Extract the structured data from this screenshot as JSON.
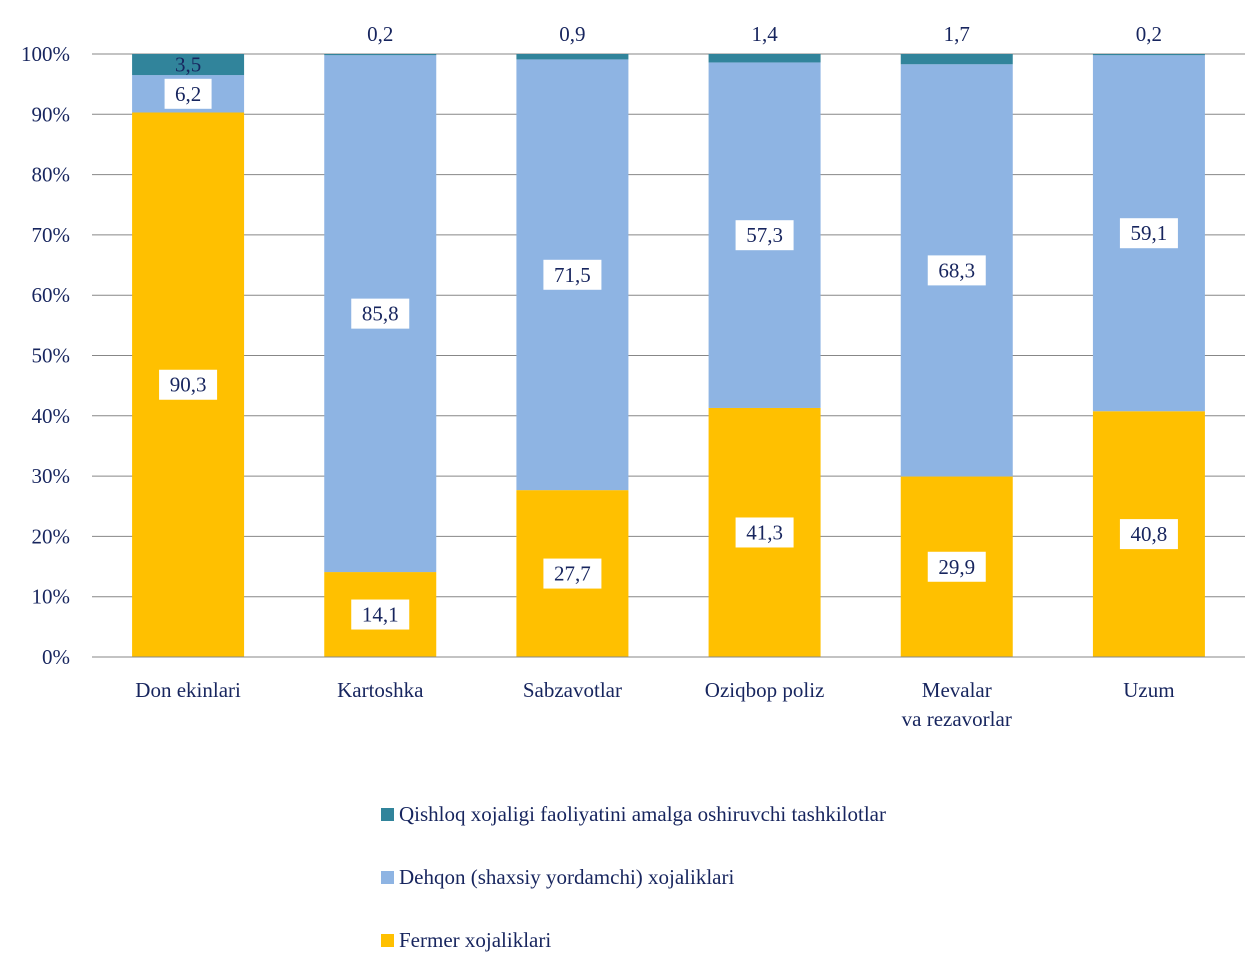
{
  "chart_data": {
    "type": "bar",
    "stacked": true,
    "percent_axis": true,
    "categories": [
      "Don ekinlari",
      "Kartoshka",
      "Sabzavotlar",
      "Oziqbop poliz",
      "Mevalar va rezavorlar",
      "Uzum"
    ],
    "category_lines": [
      [
        "Don ekinlari"
      ],
      [
        "Kartoshka"
      ],
      [
        "Sabzavotlar"
      ],
      [
        "Oziqbop poliz"
      ],
      [
        "Mevalar",
        "va rezavorlar"
      ],
      [
        "Uzum"
      ]
    ],
    "series": [
      {
        "name": "Fermer xojaliklari",
        "color": "#ffc000",
        "values": [
          90.3,
          14.1,
          27.7,
          41.3,
          29.9,
          40.8
        ],
        "labels": [
          "90,3",
          "14,1",
          "27,7",
          "41,3",
          "29,9",
          "40,8"
        ]
      },
      {
        "name": "Dehqon (shaxsiy yordamchi) xojaliklari",
        "color": "#8eb4e3",
        "values": [
          6.2,
          85.8,
          71.5,
          57.3,
          68.3,
          59.1
        ],
        "labels": [
          "6,2",
          "85,8",
          "71,5",
          "57,3",
          "68,3",
          "59,1"
        ]
      },
      {
        "name": "Qishloq xojaligi faoliyatini amalga oshiruvchi tashkilotlar",
        "color": "#31849b",
        "values": [
          3.5,
          0.2,
          0.9,
          1.4,
          1.7,
          0.2
        ],
        "labels": [
          "3,5",
          "0,2",
          "0,9",
          "1,4",
          "1,7",
          "0,2"
        ]
      }
    ],
    "legend_order": [
      2,
      1,
      0
    ],
    "legend_position": "bottom",
    "yticks": [
      "0%",
      "10%",
      "20%",
      "30%",
      "40%",
      "50%",
      "60%",
      "70%",
      "80%",
      "90%",
      "100%"
    ],
    "ylim": [
      0,
      100
    ],
    "grid": true,
    "title": "",
    "xlabel": "",
    "ylabel": ""
  }
}
